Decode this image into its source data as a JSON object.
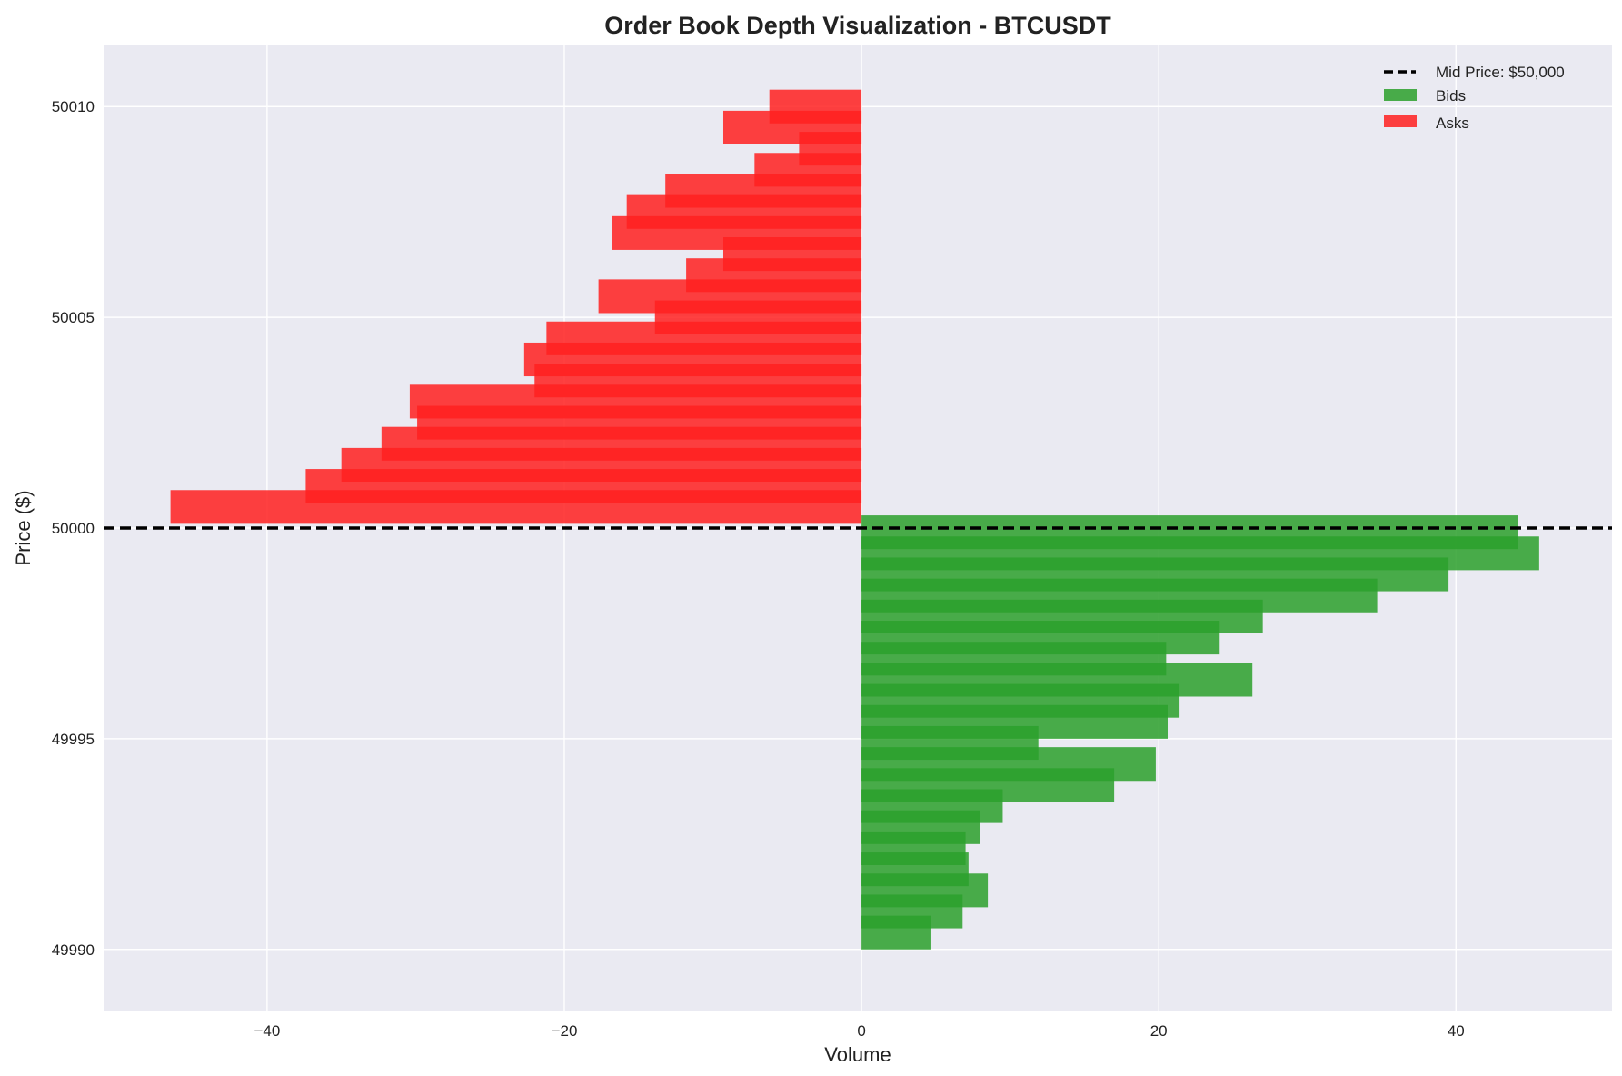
{
  "chart_data": {
    "type": "bar",
    "orientation": "horizontal",
    "title": "Order Book Depth Visualization - BTCUSDT",
    "xlabel": "Volume",
    "ylabel": "Price ($)",
    "xlim": [
      -51,
      50.5
    ],
    "ylim": [
      49988.55,
      50011.45
    ],
    "xticks": [
      -40,
      -20,
      0,
      20,
      40
    ],
    "xtick_labels": [
      "−40",
      "−20",
      "0",
      "20",
      "40"
    ],
    "yticks": [
      49990,
      49995,
      50000,
      50005,
      50010
    ],
    "ytick_labels": [
      "49990",
      "49995",
      "50000",
      "50005",
      "50010"
    ],
    "bar_height": 0.8,
    "grid": true,
    "legend_position": "top-right",
    "mid_price": {
      "value": 50000,
      "label": "Mid Price: $50,000",
      "color": "#000000",
      "style": "dashed"
    },
    "series": [
      {
        "name": "Bids",
        "color": "#2ca02c",
        "overlap_color": "#008000",
        "points": [
          {
            "price": 49999.9,
            "volume": 44.2
          },
          {
            "price": 49999.4,
            "volume": 45.6
          },
          {
            "price": 49998.9,
            "volume": 39.5
          },
          {
            "price": 49998.4,
            "volume": 34.7
          },
          {
            "price": 49997.9,
            "volume": 27.0
          },
          {
            "price": 49997.4,
            "volume": 24.1
          },
          {
            "price": 49996.9,
            "volume": 20.5
          },
          {
            "price": 49996.4,
            "volume": 26.3
          },
          {
            "price": 49995.9,
            "volume": 21.4
          },
          {
            "price": 49995.4,
            "volume": 20.6
          },
          {
            "price": 49994.9,
            "volume": 11.9
          },
          {
            "price": 49994.4,
            "volume": 19.8
          },
          {
            "price": 49993.9,
            "volume": 17.0
          },
          {
            "price": 49993.4,
            "volume": 9.5
          },
          {
            "price": 49992.9,
            "volume": 8.0
          },
          {
            "price": 49992.4,
            "volume": 7.0
          },
          {
            "price": 49991.9,
            "volume": 7.2
          },
          {
            "price": 49991.4,
            "volume": 8.5
          },
          {
            "price": 49990.9,
            "volume": 6.8
          },
          {
            "price": 49990.4,
            "volume": 4.7
          }
        ]
      },
      {
        "name": "Asks",
        "color": "#ff2020",
        "overlap_color": "#ff0000",
        "points": [
          {
            "price": 50000.5,
            "volume": -46.5
          },
          {
            "price": 50001.0,
            "volume": -37.4
          },
          {
            "price": 50001.5,
            "volume": -35.0
          },
          {
            "price": 50002.0,
            "volume": -32.3
          },
          {
            "price": 50002.5,
            "volume": -29.9
          },
          {
            "price": 50003.0,
            "volume": -30.4
          },
          {
            "price": 50003.5,
            "volume": -22.0
          },
          {
            "price": 50004.0,
            "volume": -22.7
          },
          {
            "price": 50004.5,
            "volume": -21.2
          },
          {
            "price": 50005.0,
            "volume": -13.9
          },
          {
            "price": 50005.5,
            "volume": -17.7
          },
          {
            "price": 50006.0,
            "volume": -11.8
          },
          {
            "price": 50006.5,
            "volume": -9.3
          },
          {
            "price": 50007.0,
            "volume": -16.8
          },
          {
            "price": 50007.5,
            "volume": -15.8
          },
          {
            "price": 50008.0,
            "volume": -13.2
          },
          {
            "price": 50008.5,
            "volume": -7.2
          },
          {
            "price": 50009.0,
            "volume": -4.2
          },
          {
            "price": 50009.5,
            "volume": -9.3
          },
          {
            "price": 50010.0,
            "volume": -6.2
          }
        ]
      }
    ]
  }
}
